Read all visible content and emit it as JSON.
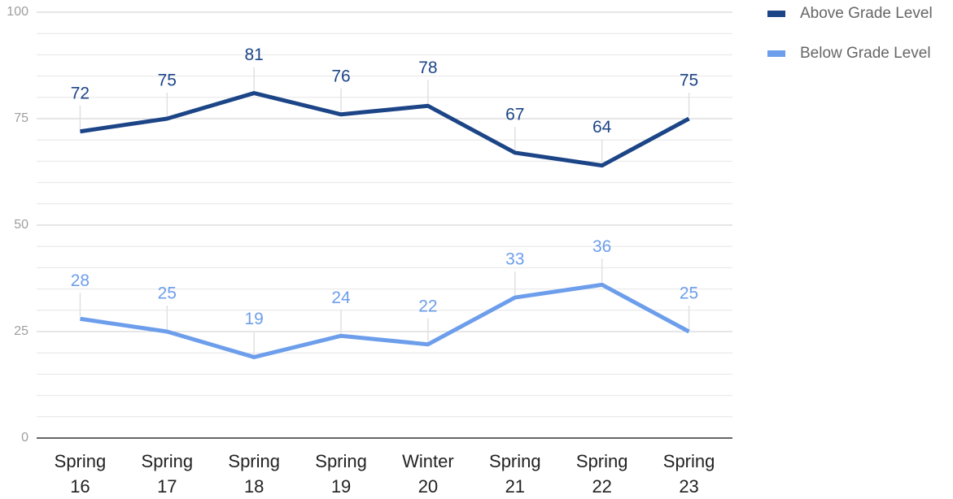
{
  "chart_data": {
    "type": "line",
    "categories": [
      "Spring 16",
      "Spring 17",
      "Spring 18",
      "Spring 19",
      "Winter 20",
      "Spring 21",
      "Spring 22",
      "Spring 23"
    ],
    "series": [
      {
        "name": "Above Grade Level",
        "color": "#1c4587",
        "values": [
          72,
          75,
          81,
          76,
          78,
          67,
          64,
          75
        ]
      },
      {
        "name": "Below Grade Level",
        "color": "#6d9eeb",
        "values": [
          28,
          25,
          19,
          24,
          22,
          33,
          36,
          25
        ]
      }
    ],
    "ylim": [
      0,
      100
    ],
    "yticks": [
      0,
      25,
      50,
      75,
      100
    ],
    "grid": true,
    "minor_grid": 5,
    "data_labels": true,
    "legend": "right"
  }
}
